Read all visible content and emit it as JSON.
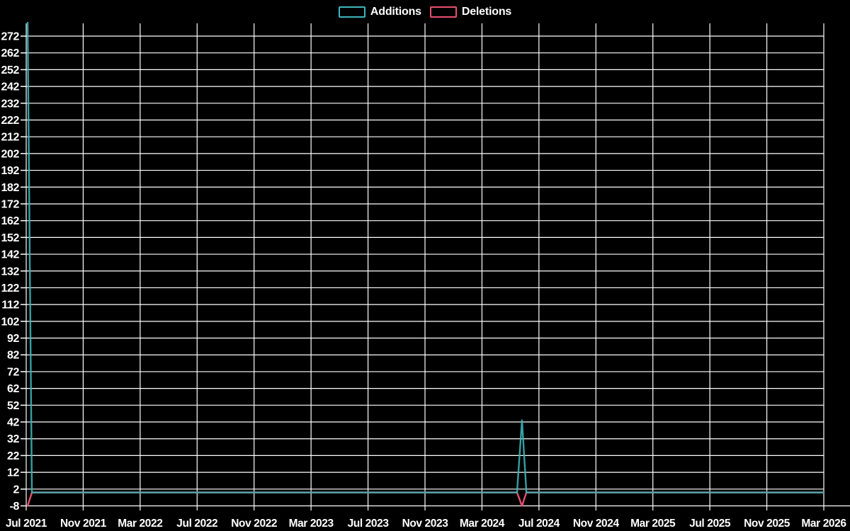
{
  "chart_data": {
    "type": "line",
    "title": "",
    "background": "#000000",
    "grid": true,
    "grid_color": "#ffffff",
    "text_color": "#ffffff",
    "legend_position": "top-center",
    "legend": [
      {
        "label": "Additions",
        "color": "#3cb6ba"
      },
      {
        "label": "Deletions",
        "color": "#e7506f"
      }
    ],
    "x_axis": {
      "tick_labels": [
        "Jul 2021",
        "Nov 2021",
        "Mar 2022",
        "Jul 2022",
        "Nov 2022",
        "Mar 2023",
        "Jul 2023",
        "Nov 2023",
        "Mar 2024",
        "Jul 2024",
        "Nov 2024",
        "Mar 2025",
        "Jul 2025",
        "Nov 2025",
        "Mar 2026"
      ],
      "tick_interval_months": 4,
      "span_months": 56
    },
    "y_axis": {
      "tick_labels": [
        "272",
        "262",
        "252",
        "242",
        "232",
        "222",
        "212",
        "202",
        "192",
        "182",
        "172",
        "162",
        "152",
        "142",
        "132",
        "122",
        "112",
        "102",
        "92",
        "82",
        "72",
        "62",
        "52",
        "42",
        "32",
        "22",
        "12",
        "2",
        "-8"
      ],
      "tick_max": 272,
      "tick_min": -8,
      "tick_step": 10,
      "view_max": 279.6,
      "view_min": -9.9
    },
    "series": [
      {
        "name": "Additions",
        "color": "#3cb6ba",
        "points_month_value": [
          [
            0.1,
            280
          ],
          [
            0.4,
            0
          ],
          [
            34.46,
            0
          ],
          [
            34.81,
            43
          ],
          [
            35.12,
            0
          ],
          [
            56,
            0
          ]
        ]
      },
      {
        "name": "Deletions",
        "color": "#e7506f",
        "points_month_value": [
          [
            0.1,
            -8
          ],
          [
            0.4,
            0
          ],
          [
            34.46,
            0
          ],
          [
            34.81,
            -8
          ],
          [
            35.12,
            0
          ],
          [
            56,
            0
          ]
        ]
      }
    ]
  }
}
